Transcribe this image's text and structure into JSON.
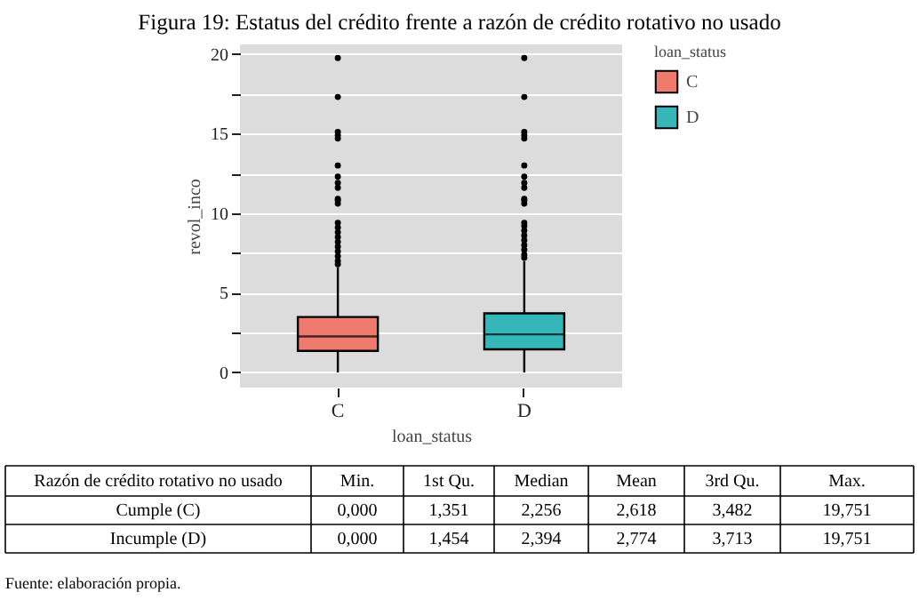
{
  "chart_data": {
    "type": "box",
    "title": "Figura 19: Estatus del crédito frente a razón de crédito rotativo no usado",
    "xlabel": "loan_status",
    "ylabel": "revol_inco",
    "legend_title": "loan_status",
    "legend": "right",
    "categories": [
      "C",
      "D"
    ],
    "series": [
      {
        "name": "C",
        "color": "#ef7a6e",
        "boxes": [
          {
            "low": 0,
            "q1": 1.351,
            "median": 2.256,
            "q3": 3.482,
            "high": 6.6,
            "outliers": [
              6.8,
              7.0,
              7.3,
              7.6,
              7.9,
              8.2,
              8.5,
              8.8,
              9.1,
              9.4,
              10.6,
              10.8,
              10.9,
              11.6,
              11.9,
              12.3,
              13.0,
              14.7,
              14.9,
              15.1,
              17.3,
              19.751
            ]
          },
          null
        ]
      },
      {
        "name": "D",
        "color": "#35b6b8",
        "boxes": [
          null,
          {
            "low": 0,
            "q1": 1.454,
            "median": 2.394,
            "q3": 3.713,
            "high": 7.0,
            "outliers": [
              7.2,
              7.4,
              7.7,
              8.0,
              8.3,
              8.6,
              8.9,
              9.2,
              9.4,
              10.6,
              10.8,
              10.9,
              11.6,
              11.9,
              12.3,
              13.0,
              14.7,
              14.9,
              15.1,
              17.3,
              19.751
            ]
          }
        ]
      }
    ],
    "value_labels": [
      [
        "0,000",
        "1,351",
        "2,256",
        "2,618",
        "3,482",
        "19,751"
      ],
      [
        "0,000",
        "1,454",
        "2,394",
        "2,774",
        "3,713",
        "19,751"
      ]
    ],
    "ylim": [
      -0.95,
      20.6
    ],
    "yticks": [
      0,
      {
        "value": 2.5,
        "label": null
      },
      5,
      {
        "value": 7.5,
        "label": null
      },
      10,
      {
        "value": 12.5,
        "label": null
      },
      15,
      {
        "value": 17.5,
        "label": null
      },
      20
    ],
    "grid": "y",
    "annotations": [
      "Razón de crédito rotativo no usado",
      "Min.",
      "1st Qu.",
      "Median",
      "Mean",
      "3rd Qu.",
      "Max.",
      "Cumple (C)",
      "Incumple (D)",
      "Fuente: elaboración propia."
    ]
  }
}
